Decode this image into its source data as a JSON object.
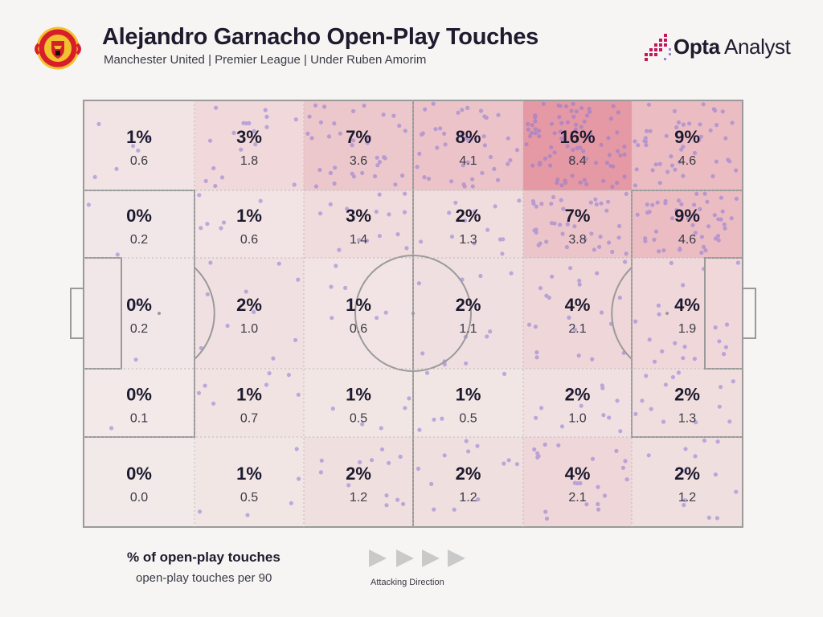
{
  "header": {
    "title": "Alejandro Garnacho Open-Play Touches",
    "subtitle": "Manchester United | Premier League | Under Ruben Amorim",
    "brand_bold": "Opta",
    "brand_light": "Analyst",
    "crest_icon": "manchester-united-crest"
  },
  "colors": {
    "heat": "#dd6f80",
    "dots": "#8e79d6",
    "lines": "#9a9a9a",
    "arrow": "#c9c9c9",
    "brand_accent": "#c2185b"
  },
  "chart_data": {
    "type": "heatmap",
    "title": "Alejandro Garnacho Open-Play Touches",
    "columns": 6,
    "rows": 5,
    "cells": [
      [
        {
          "pct": "1%",
          "per90": "0.6"
        },
        {
          "pct": "3%",
          "per90": "1.8"
        },
        {
          "pct": "7%",
          "per90": "3.6"
        },
        {
          "pct": "8%",
          "per90": "4.1"
        },
        {
          "pct": "16%",
          "per90": "8.4"
        },
        {
          "pct": "9%",
          "per90": "4.6"
        }
      ],
      [
        {
          "pct": "0%",
          "per90": "0.2"
        },
        {
          "pct": "1%",
          "per90": "0.6"
        },
        {
          "pct": "3%",
          "per90": "1.4"
        },
        {
          "pct": "2%",
          "per90": "1.3"
        },
        {
          "pct": "7%",
          "per90": "3.8"
        },
        {
          "pct": "9%",
          "per90": "4.6"
        }
      ],
      [
        {
          "pct": "0%",
          "per90": "0.2"
        },
        {
          "pct": "2%",
          "per90": "1.0"
        },
        {
          "pct": "1%",
          "per90": "0.6"
        },
        {
          "pct": "2%",
          "per90": "1.1"
        },
        {
          "pct": "4%",
          "per90": "2.1"
        },
        {
          "pct": "4%",
          "per90": "1.9"
        }
      ],
      [
        {
          "pct": "0%",
          "per90": "0.1"
        },
        {
          "pct": "1%",
          "per90": "0.7"
        },
        {
          "pct": "1%",
          "per90": "0.5"
        },
        {
          "pct": "1%",
          "per90": "0.5"
        },
        {
          "pct": "2%",
          "per90": "1.0"
        },
        {
          "pct": "2%",
          "per90": "1.3"
        }
      ],
      [
        {
          "pct": "0%",
          "per90": "0.0"
        },
        {
          "pct": "1%",
          "per90": "0.5"
        },
        {
          "pct": "2%",
          "per90": "1.2"
        },
        {
          "pct": "2%",
          "per90": "1.2"
        },
        {
          "pct": "4%",
          "per90": "2.1"
        },
        {
          "pct": "2%",
          "per90": "1.2"
        }
      ]
    ]
  },
  "legend": {
    "primary": "% of open-play touches",
    "secondary": "open-play touches per 90",
    "direction": "Attacking Direction",
    "direction_icon": "play-arrow-icon"
  }
}
